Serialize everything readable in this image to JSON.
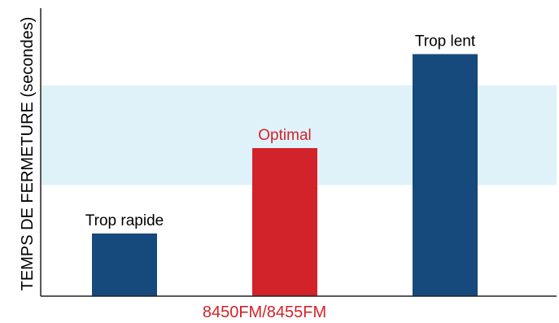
{
  "chart_data": {
    "type": "bar",
    "xlabel": "8450FM/8455FM",
    "ylabel": "TEMPS DE FERMETURE (secondes)",
    "categories": [
      "Trop rapide",
      "Optimal",
      "Trop lent"
    ],
    "values": [
      0.22,
      0.52,
      0.85
    ],
    "ylim": [
      0,
      1
    ],
    "optimal_band": [
      0.39,
      0.74
    ],
    "grid": false,
    "legend": "none"
  },
  "colors": {
    "bar_default": "#174a7c",
    "bar_optimal": "#d2232a",
    "label_default": "#000000",
    "label_optimal": "#d2232a",
    "xlabel": "#d2232a",
    "band": "#e0f2f9",
    "axis": "#222222"
  },
  "highlight_category": "Optimal"
}
